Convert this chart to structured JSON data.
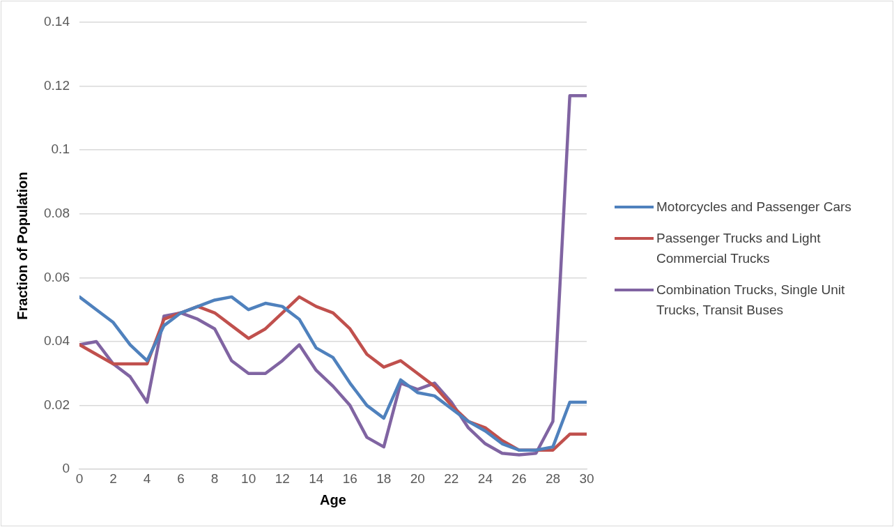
{
  "chart_data": {
    "type": "line",
    "xlabel": "Age",
    "ylabel": "Fraction of Population",
    "x": [
      0,
      1,
      2,
      3,
      4,
      5,
      6,
      7,
      8,
      9,
      10,
      11,
      12,
      13,
      14,
      15,
      16,
      17,
      18,
      19,
      20,
      21,
      22,
      23,
      24,
      25,
      26,
      27,
      28,
      29,
      30
    ],
    "xlim": [
      0,
      30
    ],
    "xticks": [
      0,
      2,
      4,
      6,
      8,
      10,
      12,
      14,
      16,
      18,
      20,
      22,
      24,
      26,
      28,
      30
    ],
    "ylim": [
      0,
      0.14
    ],
    "yticks": [
      0,
      0.02,
      0.04,
      0.06,
      0.08,
      0.1,
      0.12,
      0.14
    ],
    "grid": "y",
    "legend": "right",
    "marker": "none",
    "line_style": "solid",
    "series": [
      {
        "name": "Motorcycles and Passenger Cars",
        "color": "#4f81bd",
        "values": [
          0.054,
          0.05,
          0.046,
          0.039,
          0.034,
          0.045,
          0.049,
          0.051,
          0.053,
          0.054,
          0.05,
          0.052,
          0.051,
          0.047,
          0.038,
          0.035,
          0.027,
          0.02,
          0.016,
          0.028,
          0.024,
          0.023,
          0.019,
          0.015,
          0.012,
          0.008,
          0.006,
          0.006,
          0.007,
          0.021,
          0.021
        ]
      },
      {
        "name": "Passenger Trucks and Light Commercial Trucks",
        "color": "#c0504d",
        "values": [
          0.039,
          0.036,
          0.033,
          0.033,
          0.033,
          0.047,
          0.049,
          0.051,
          0.049,
          0.045,
          0.041,
          0.044,
          0.049,
          0.054,
          0.051,
          0.049,
          0.044,
          0.036,
          0.032,
          0.034,
          0.03,
          0.026,
          0.02,
          0.015,
          0.013,
          0.009,
          0.006,
          0.006,
          0.006,
          0.011,
          0.011
        ]
      },
      {
        "name": "Combination Trucks, Single Unit Trucks, Transit Buses",
        "color": "#8064a2",
        "values": [
          0.039,
          0.04,
          0.033,
          0.029,
          0.021,
          0.048,
          0.049,
          0.047,
          0.044,
          0.034,
          0.03,
          0.03,
          0.034,
          0.039,
          0.031,
          0.026,
          0.02,
          0.01,
          0.007,
          0.027,
          0.025,
          0.027,
          0.021,
          0.013,
          0.008,
          0.005,
          0.0045,
          0.005,
          0.015,
          0.117,
          0.117
        ]
      }
    ]
  }
}
